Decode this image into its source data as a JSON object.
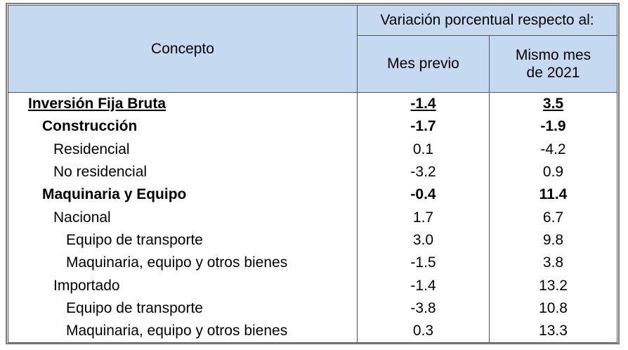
{
  "header": {
    "concept": "Concepto",
    "group": "Variación porcentual respecto al:",
    "col_a": "Mes previo",
    "col_b_line1": "Mismo mes",
    "col_b_line2": "de 2021"
  },
  "rows": [
    {
      "label": "Inversión Fija Bruta",
      "a": "-1.4",
      "b": "3.5"
    },
    {
      "label": "Construcción",
      "a": "-1.7",
      "b": "-1.9"
    },
    {
      "label": "Residencial",
      "a": "0.1",
      "b": "-4.2"
    },
    {
      "label": "No residencial",
      "a": "-3.2",
      "b": "0.9"
    },
    {
      "label": "Maquinaria y Equipo",
      "a": "-0.4",
      "b": "11.4"
    },
    {
      "label": "Nacional",
      "a": "1.7",
      "b": "6.7"
    },
    {
      "label": "Equipo de transporte",
      "a": "3.0",
      "b": "9.8"
    },
    {
      "label": "Maquinaria, equipo y otros bienes",
      "a": "-1.5",
      "b": "3.8"
    },
    {
      "label": "Importado",
      "a": "-1.4",
      "b": "13.2"
    },
    {
      "label": "Equipo de transporte",
      "a": "-3.8",
      "b": "10.8"
    },
    {
      "label": "Maquinaria, equipo y otros bienes",
      "a": "0.3",
      "b": "13.3"
    }
  ]
}
